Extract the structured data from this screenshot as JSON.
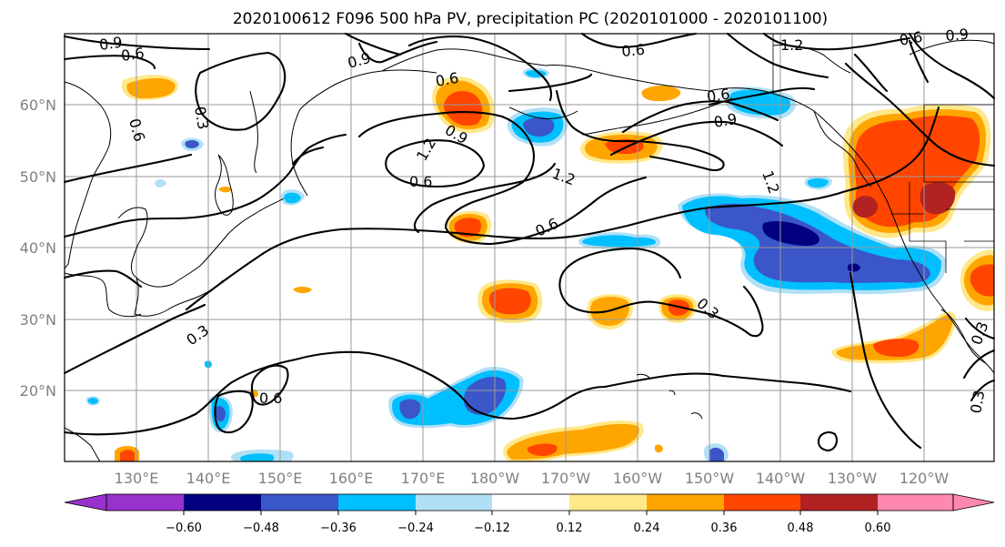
{
  "title": "2020100612 F096 500 hPa PV, precipitation PC (2020101000 - 2020101100)",
  "lat_labels": [
    "60°N",
    "50°N",
    "40°N",
    "30°N",
    "20°N"
  ],
  "lon_labels": [
    "130°E",
    "140°E",
    "150°E",
    "160°E",
    "170°E",
    "180°W",
    "170°W",
    "160°W",
    "150°W",
    "140°W",
    "130°W",
    "120°W"
  ],
  "contour_labels": [
    "0.9",
    "0.6",
    "0.3",
    "0.6",
    "0.9",
    "0.6",
    "0.6",
    "1.2",
    "0.6",
    "0.9",
    "0.6",
    "0.9",
    "1.2",
    "1.2",
    "0.6",
    "0.3",
    "0.3",
    "0.6",
    "0.3",
    "0.3",
    "1.2",
    "0.6",
    "0.9"
  ],
  "colorbar": {
    "tick_labels": [
      "−0.60",
      "−0.48",
      "−0.36",
      "−0.24",
      "−0.12",
      "0.12",
      "0.24",
      "0.36",
      "0.48",
      "0.60"
    ],
    "colors": [
      "#9932cc",
      "#000080",
      "#3a56c8",
      "#00bfff",
      "#b0e0f6",
      "#ffffff",
      "#ffe88a",
      "#ffa500",
      "#ff4500",
      "#b22222",
      "#ff88b0"
    ]
  },
  "colors": {
    "pos_1": "#ffe88a",
    "pos_2": "#ffa500",
    "pos_3": "#ff4500",
    "pos_4": "#b22222",
    "neg_1": "#b0e0f6",
    "neg_2": "#00bfff",
    "neg_3": "#3a56c8",
    "neg_4": "#000080"
  }
}
